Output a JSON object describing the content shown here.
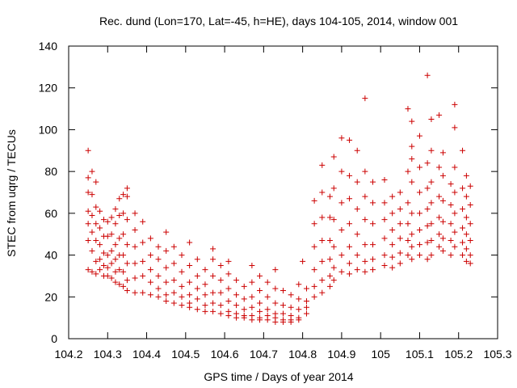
{
  "chart_data": {
    "type": "scatter",
    "title": "Rec. dund (Lon=170, Lat=-45, h=HE), days 104-105, 2014, window 001",
    "xlabel": "GPS time / Days of year 2014",
    "ylabel": "STEC from uqrg / TECUs",
    "xlim": [
      104.2,
      105.3
    ],
    "ylim": [
      0,
      140
    ],
    "xticks": [
      "104.2",
      "104.3",
      "104.4",
      "104.5",
      "104.6",
      "104.7",
      "104.8",
      "104.9",
      "105",
      "105.1",
      "105.2",
      "105.3"
    ],
    "yticks": [
      "0",
      "20",
      "40",
      "60",
      "80",
      "100",
      "120",
      "140"
    ],
    "grid": false,
    "legend": "none",
    "marker": "plus",
    "color": "#cc0000",
    "points": [
      [
        104.25,
        90
      ],
      [
        104.25,
        77
      ],
      [
        104.25,
        70
      ],
      [
        104.25,
        61
      ],
      [
        104.25,
        55
      ],
      [
        104.25,
        47
      ],
      [
        104.25,
        33
      ],
      [
        104.26,
        80
      ],
      [
        104.26,
        69
      ],
      [
        104.26,
        59
      ],
      [
        104.26,
        51
      ],
      [
        104.26,
        42
      ],
      [
        104.26,
        32
      ],
      [
        104.27,
        75
      ],
      [
        104.27,
        63
      ],
      [
        104.27,
        55
      ],
      [
        104.27,
        47
      ],
      [
        104.27,
        37
      ],
      [
        104.27,
        31
      ],
      [
        104.28,
        61
      ],
      [
        104.28,
        53
      ],
      [
        104.28,
        45
      ],
      [
        104.28,
        38
      ],
      [
        104.28,
        33
      ],
      [
        104.29,
        57
      ],
      [
        104.29,
        49
      ],
      [
        104.29,
        41
      ],
      [
        104.29,
        35
      ],
      [
        104.29,
        30
      ],
      [
        104.3,
        56
      ],
      [
        104.3,
        49
      ],
      [
        104.3,
        40
      ],
      [
        104.3,
        34
      ],
      [
        104.3,
        30
      ],
      [
        104.31,
        58
      ],
      [
        104.31,
        50
      ],
      [
        104.31,
        42
      ],
      [
        104.31,
        36
      ],
      [
        104.31,
        29
      ],
      [
        104.32,
        62
      ],
      [
        104.32,
        55
      ],
      [
        104.32,
        45
      ],
      [
        104.32,
        38
      ],
      [
        104.32,
        32
      ],
      [
        104.32,
        27
      ],
      [
        104.33,
        67
      ],
      [
        104.33,
        59
      ],
      [
        104.33,
        48
      ],
      [
        104.33,
        40
      ],
      [
        104.33,
        33
      ],
      [
        104.33,
        26
      ],
      [
        104.34,
        69
      ],
      [
        104.34,
        60
      ],
      [
        104.34,
        50
      ],
      [
        104.34,
        40
      ],
      [
        104.34,
        32
      ],
      [
        104.34,
        25
      ],
      [
        104.35,
        72
      ],
      [
        104.35,
        68
      ],
      [
        104.35,
        57
      ],
      [
        104.35,
        45
      ],
      [
        104.35,
        36
      ],
      [
        104.35,
        28
      ],
      [
        104.35,
        23
      ],
      [
        104.37,
        60
      ],
      [
        104.37,
        52
      ],
      [
        104.37,
        44
      ],
      [
        104.37,
        36
      ],
      [
        104.37,
        29
      ],
      [
        104.37,
        22
      ],
      [
        104.39,
        56
      ],
      [
        104.39,
        46
      ],
      [
        104.39,
        37
      ],
      [
        104.39,
        30
      ],
      [
        104.39,
        22
      ],
      [
        104.41,
        48
      ],
      [
        104.41,
        40
      ],
      [
        104.41,
        33
      ],
      [
        104.41,
        27
      ],
      [
        104.41,
        21
      ],
      [
        104.43,
        44
      ],
      [
        104.43,
        38
      ],
      [
        104.43,
        30
      ],
      [
        104.43,
        24
      ],
      [
        104.43,
        20
      ],
      [
        104.45,
        51
      ],
      [
        104.45,
        42
      ],
      [
        104.45,
        34
      ],
      [
        104.45,
        27
      ],
      [
        104.45,
        21
      ],
      [
        104.45,
        18
      ],
      [
        104.47,
        44
      ],
      [
        104.47,
        36
      ],
      [
        104.47,
        28
      ],
      [
        104.47,
        22
      ],
      [
        104.47,
        17
      ],
      [
        104.49,
        40
      ],
      [
        104.49,
        32
      ],
      [
        104.49,
        25
      ],
      [
        104.49,
        20
      ],
      [
        104.49,
        16
      ],
      [
        104.51,
        46
      ],
      [
        104.51,
        35
      ],
      [
        104.51,
        27
      ],
      [
        104.51,
        21
      ],
      [
        104.51,
        17
      ],
      [
        104.51,
        15
      ],
      [
        104.53,
        38
      ],
      [
        104.53,
        30
      ],
      [
        104.53,
        24
      ],
      [
        104.53,
        19
      ],
      [
        104.53,
        14
      ],
      [
        104.55,
        33
      ],
      [
        104.55,
        26
      ],
      [
        104.55,
        21
      ],
      [
        104.55,
        16
      ],
      [
        104.55,
        13
      ],
      [
        104.57,
        43
      ],
      [
        104.57,
        38
      ],
      [
        104.57,
        30
      ],
      [
        104.57,
        22
      ],
      [
        104.57,
        17
      ],
      [
        104.57,
        13
      ],
      [
        104.59,
        35
      ],
      [
        104.59,
        28
      ],
      [
        104.59,
        22
      ],
      [
        104.59,
        16
      ],
      [
        104.59,
        12
      ],
      [
        104.61,
        37
      ],
      [
        104.61,
        31
      ],
      [
        104.61,
        24
      ],
      [
        104.61,
        18
      ],
      [
        104.61,
        13
      ],
      [
        104.61,
        11
      ],
      [
        104.63,
        28
      ],
      [
        104.63,
        21
      ],
      [
        104.63,
        16
      ],
      [
        104.63,
        12
      ],
      [
        104.63,
        10
      ],
      [
        104.65,
        25
      ],
      [
        104.65,
        19
      ],
      [
        104.65,
        14
      ],
      [
        104.65,
        11
      ],
      [
        104.65,
        10
      ],
      [
        104.67,
        35
      ],
      [
        104.67,
        27
      ],
      [
        104.67,
        20
      ],
      [
        104.67,
        15
      ],
      [
        104.67,
        11
      ],
      [
        104.67,
        9
      ],
      [
        104.69,
        30
      ],
      [
        104.69,
        23
      ],
      [
        104.69,
        17
      ],
      [
        104.69,
        13
      ],
      [
        104.69,
        10
      ],
      [
        104.69,
        9
      ],
      [
        104.71,
        27
      ],
      [
        104.71,
        20
      ],
      [
        104.71,
        14
      ],
      [
        104.71,
        11
      ],
      [
        104.71,
        9
      ],
      [
        104.73,
        33
      ],
      [
        104.73,
        24
      ],
      [
        104.73,
        17
      ],
      [
        104.73,
        12
      ],
      [
        104.73,
        10
      ],
      [
        104.73,
        8
      ],
      [
        104.75,
        23
      ],
      [
        104.75,
        16
      ],
      [
        104.75,
        12
      ],
      [
        104.75,
        9
      ],
      [
        104.75,
        8
      ],
      [
        104.77,
        21
      ],
      [
        104.77,
        15
      ],
      [
        104.77,
        11
      ],
      [
        104.77,
        9
      ],
      [
        104.77,
        8
      ],
      [
        104.79,
        26
      ],
      [
        104.79,
        19
      ],
      [
        104.79,
        14
      ],
      [
        104.79,
        10
      ],
      [
        104.79,
        9
      ],
      [
        104.8,
        37
      ],
      [
        104.81,
        24
      ],
      [
        104.81,
        18
      ],
      [
        104.81,
        15
      ],
      [
        104.81,
        12
      ],
      [
        104.83,
        66
      ],
      [
        104.83,
        55
      ],
      [
        104.83,
        44
      ],
      [
        104.83,
        33
      ],
      [
        104.83,
        25
      ],
      [
        104.83,
        20
      ],
      [
        104.85,
        83
      ],
      [
        104.85,
        70
      ],
      [
        104.85,
        58
      ],
      [
        104.85,
        47
      ],
      [
        104.85,
        37
      ],
      [
        104.85,
        28
      ],
      [
        104.85,
        22
      ],
      [
        104.87,
        68
      ],
      [
        104.87,
        58
      ],
      [
        104.87,
        47
      ],
      [
        104.87,
        38
      ],
      [
        104.87,
        30
      ],
      [
        104.87,
        25
      ],
      [
        104.88,
        87
      ],
      [
        104.88,
        72
      ],
      [
        104.88,
        57
      ],
      [
        104.88,
        44
      ],
      [
        104.88,
        34
      ],
      [
        104.88,
        28
      ],
      [
        104.9,
        96
      ],
      [
        104.9,
        80
      ],
      [
        104.9,
        65
      ],
      [
        104.9,
        52
      ],
      [
        104.9,
        40
      ],
      [
        104.9,
        32
      ],
      [
        104.92,
        95
      ],
      [
        104.92,
        78
      ],
      [
        104.92,
        67
      ],
      [
        104.92,
        55
      ],
      [
        104.92,
        44
      ],
      [
        104.92,
        36
      ],
      [
        104.92,
        31
      ],
      [
        104.94,
        90
      ],
      [
        104.94,
        75
      ],
      [
        104.94,
        62
      ],
      [
        104.94,
        50
      ],
      [
        104.94,
        40
      ],
      [
        104.94,
        33
      ],
      [
        104.96,
        115
      ],
      [
        104.96,
        80
      ],
      [
        104.96,
        68
      ],
      [
        104.96,
        57
      ],
      [
        104.96,
        45
      ],
      [
        104.96,
        37
      ],
      [
        104.96,
        32
      ],
      [
        104.98,
        75
      ],
      [
        104.98,
        65
      ],
      [
        104.98,
        55
      ],
      [
        104.98,
        45
      ],
      [
        104.98,
        38
      ],
      [
        104.98,
        33
      ],
      [
        105.01,
        76
      ],
      [
        105.01,
        65
      ],
      [
        105.01,
        57
      ],
      [
        105.01,
        48
      ],
      [
        105.01,
        40
      ],
      [
        105.01,
        35
      ],
      [
        105.03,
        68
      ],
      [
        105.03,
        60
      ],
      [
        105.03,
        52
      ],
      [
        105.03,
        45
      ],
      [
        105.03,
        39
      ],
      [
        105.03,
        34
      ],
      [
        105.05,
        70
      ],
      [
        105.05,
        62
      ],
      [
        105.05,
        55
      ],
      [
        105.05,
        48
      ],
      [
        105.05,
        41
      ],
      [
        105.05,
        36
      ],
      [
        105.07,
        110
      ],
      [
        105.07,
        80
      ],
      [
        105.07,
        65
      ],
      [
        105.07,
        55
      ],
      [
        105.07,
        47
      ],
      [
        105.07,
        40
      ],
      [
        105.08,
        104
      ],
      [
        105.08,
        92
      ],
      [
        105.08,
        86
      ],
      [
        105.08,
        75
      ],
      [
        105.08,
        60
      ],
      [
        105.08,
        50
      ],
      [
        105.08,
        44
      ],
      [
        105.08,
        38
      ],
      [
        105.1,
        97
      ],
      [
        105.1,
        82
      ],
      [
        105.1,
        70
      ],
      [
        105.1,
        60
      ],
      [
        105.1,
        52
      ],
      [
        105.1,
        45
      ],
      [
        105.1,
        40
      ],
      [
        105.12,
        126
      ],
      [
        105.12,
        84
      ],
      [
        105.12,
        72
      ],
      [
        105.12,
        62
      ],
      [
        105.12,
        54
      ],
      [
        105.12,
        46
      ],
      [
        105.12,
        38
      ],
      [
        105.13,
        105
      ],
      [
        105.13,
        90
      ],
      [
        105.13,
        75
      ],
      [
        105.13,
        65
      ],
      [
        105.13,
        55
      ],
      [
        105.13,
        47
      ],
      [
        105.13,
        40
      ],
      [
        105.15,
        107
      ],
      [
        105.15,
        82
      ],
      [
        105.15,
        68
      ],
      [
        105.15,
        58
      ],
      [
        105.15,
        50
      ],
      [
        105.15,
        44
      ],
      [
        105.16,
        89
      ],
      [
        105.16,
        78
      ],
      [
        105.16,
        66
      ],
      [
        105.16,
        56
      ],
      [
        105.16,
        48
      ],
      [
        105.16,
        42
      ],
      [
        105.18,
        74
      ],
      [
        105.18,
        64
      ],
      [
        105.18,
        55
      ],
      [
        105.18,
        47
      ],
      [
        105.18,
        40
      ],
      [
        105.19,
        112
      ],
      [
        105.19,
        101
      ],
      [
        105.19,
        82
      ],
      [
        105.19,
        70
      ],
      [
        105.19,
        60
      ],
      [
        105.19,
        51
      ],
      [
        105.19,
        44
      ],
      [
        105.21,
        90
      ],
      [
        105.21,
        72
      ],
      [
        105.21,
        62
      ],
      [
        105.21,
        53
      ],
      [
        105.21,
        46
      ],
      [
        105.21,
        40
      ],
      [
        105.22,
        78
      ],
      [
        105.22,
        68
      ],
      [
        105.22,
        58
      ],
      [
        105.22,
        50
      ],
      [
        105.22,
        43
      ],
      [
        105.22,
        37
      ],
      [
        105.23,
        73
      ],
      [
        105.23,
        64
      ],
      [
        105.23,
        55
      ],
      [
        105.23,
        47
      ],
      [
        105.23,
        40
      ],
      [
        105.23,
        36
      ]
    ]
  }
}
